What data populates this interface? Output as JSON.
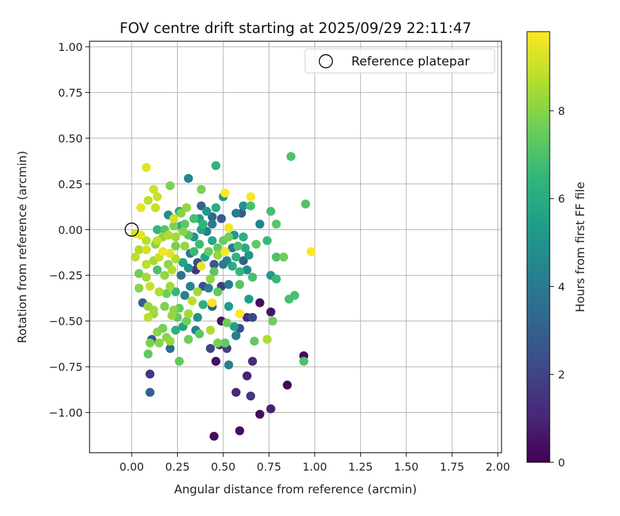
{
  "chart_data": {
    "type": "scatter",
    "title": "FOV centre drift starting at 2025/09/29 22:11:47",
    "xlabel": "Angular distance from reference (arcmin)",
    "ylabel": "Rotation from reference (arcmin)",
    "xlim": [
      -0.23,
      2.02
    ],
    "ylim": [
      -1.22,
      1.03
    ],
    "x_ticks": [
      0.0,
      0.25,
      0.5,
      0.75,
      1.0,
      1.25,
      1.5,
      1.75,
      2.0
    ],
    "x_tick_labels": [
      "0.00",
      "0.25",
      "0.50",
      "0.75",
      "1.00",
      "1.25",
      "1.50",
      "1.75",
      "2.00"
    ],
    "y_ticks": [
      -1.0,
      -0.75,
      -0.5,
      -0.25,
      0.0,
      0.25,
      0.5,
      0.75,
      1.0
    ],
    "y_tick_labels": [
      "−1.00",
      "−0.75",
      "−0.50",
      "−0.25",
      "0.00",
      "0.25",
      "0.50",
      "0.75",
      "1.00"
    ],
    "grid": true,
    "legend": {
      "position": "top-right",
      "entries": [
        "Reference platepar"
      ]
    },
    "reference_point": {
      "x": 0.0,
      "y": 0.0,
      "label": "Reference platepar"
    },
    "colorbar": {
      "label": "Hours from first FF file",
      "range": [
        0,
        9.8
      ],
      "ticks": [
        0,
        2,
        4,
        6,
        8
      ],
      "tick_labels": [
        "0",
        "2",
        "4",
        "6",
        "8"
      ],
      "colormap": [
        "#440154",
        "#482878",
        "#3e4989",
        "#31688e",
        "#26828e",
        "#1f9e89",
        "#35b779",
        "#6ece58",
        "#b5de2b",
        "#fde725"
      ]
    },
    "points": [
      {
        "x": 0.45,
        "y": -1.13,
        "t": 0.3
      },
      {
        "x": 0.59,
        "y": -1.1,
        "t": 0.4
      },
      {
        "x": 0.7,
        "y": -1.01,
        "t": 0.3
      },
      {
        "x": 0.76,
        "y": -0.98,
        "t": 0.9
      },
      {
        "x": 0.57,
        "y": -0.89,
        "t": 1.1
      },
      {
        "x": 0.65,
        "y": -0.91,
        "t": 1.6
      },
      {
        "x": 0.1,
        "y": -0.89,
        "t": 3.0
      },
      {
        "x": 0.1,
        "y": -0.79,
        "t": 1.6
      },
      {
        "x": 0.63,
        "y": -0.8,
        "t": 1.0
      },
      {
        "x": 0.85,
        "y": -0.85,
        "t": 0.2
      },
      {
        "x": 0.46,
        "y": -0.72,
        "t": 0.4
      },
      {
        "x": 0.53,
        "y": -0.74,
        "t": 4.3
      },
      {
        "x": 0.66,
        "y": -0.72,
        "t": 1.3
      },
      {
        "x": 0.26,
        "y": -0.72,
        "t": 7.4
      },
      {
        "x": 0.94,
        "y": -0.69,
        "t": 0.3
      },
      {
        "x": 0.94,
        "y": -0.72,
        "t": 7.0
      },
      {
        "x": 0.09,
        "y": -0.68,
        "t": 7.4
      },
      {
        "x": 0.21,
        "y": -0.65,
        "t": 3.5
      },
      {
        "x": 0.43,
        "y": -0.65,
        "t": 2.0
      },
      {
        "x": 0.52,
        "y": -0.65,
        "t": 1.8
      },
      {
        "x": 0.48,
        "y": -0.63,
        "t": 1.4
      },
      {
        "x": 0.1,
        "y": -0.62,
        "t": 7.8
      },
      {
        "x": 0.15,
        "y": -0.62,
        "t": 8.0
      },
      {
        "x": 0.21,
        "y": -0.61,
        "t": 8.2
      },
      {
        "x": 0.31,
        "y": -0.6,
        "t": 7.6
      },
      {
        "x": 0.47,
        "y": -0.62,
        "t": 7.8
      },
      {
        "x": 0.51,
        "y": -0.62,
        "t": 7.4
      },
      {
        "x": 0.57,
        "y": -0.58,
        "t": 4.0
      },
      {
        "x": 0.67,
        "y": -0.61,
        "t": 7.4
      },
      {
        "x": 0.74,
        "y": -0.6,
        "t": 8.6
      },
      {
        "x": 0.11,
        "y": -0.6,
        "t": 2.8
      },
      {
        "x": 0.19,
        "y": -0.59,
        "t": 8.0
      },
      {
        "x": 0.24,
        "y": -0.55,
        "t": 6.2
      },
      {
        "x": 0.35,
        "y": -0.55,
        "t": 4.2
      },
      {
        "x": 0.37,
        "y": -0.57,
        "t": 7.2
      },
      {
        "x": 0.43,
        "y": -0.55,
        "t": 8.6
      },
      {
        "x": 0.56,
        "y": -0.53,
        "t": 5.5
      },
      {
        "x": 0.59,
        "y": -0.54,
        "t": 2.4
      },
      {
        "x": 0.14,
        "y": -0.56,
        "t": 8.0
      },
      {
        "x": 0.17,
        "y": -0.54,
        "t": 7.7
      },
      {
        "x": 0.28,
        "y": -0.53,
        "t": 5.7
      },
      {
        "x": 0.3,
        "y": -0.5,
        "t": 7.6
      },
      {
        "x": 0.49,
        "y": -0.5,
        "t": 0.5
      },
      {
        "x": 0.52,
        "y": -0.51,
        "t": 7.6
      },
      {
        "x": 0.59,
        "y": -0.46,
        "t": 9.8
      },
      {
        "x": 0.63,
        "y": -0.48,
        "t": 1.2
      },
      {
        "x": 0.66,
        "y": -0.48,
        "t": 2.1
      },
      {
        "x": 0.77,
        "y": -0.5,
        "t": 7.6
      },
      {
        "x": 0.09,
        "y": -0.48,
        "t": 8.8
      },
      {
        "x": 0.12,
        "y": -0.46,
        "t": 8.2
      },
      {
        "x": 0.22,
        "y": -0.47,
        "t": 8.2
      },
      {
        "x": 0.25,
        "y": -0.48,
        "t": 7.4
      },
      {
        "x": 0.31,
        "y": -0.46,
        "t": 8.4
      },
      {
        "x": 0.36,
        "y": -0.48,
        "t": 5.0
      },
      {
        "x": 0.44,
        "y": -0.42,
        "t": 3.0
      },
      {
        "x": 0.53,
        "y": -0.42,
        "t": 5.4
      },
      {
        "x": 0.7,
        "y": -0.4,
        "t": 0.4
      },
      {
        "x": 0.76,
        "y": -0.45,
        "t": 0.5
      },
      {
        "x": 0.06,
        "y": -0.4,
        "t": 3.0
      },
      {
        "x": 0.09,
        "y": -0.42,
        "t": 8.2
      },
      {
        "x": 0.12,
        "y": -0.44,
        "t": 8.4
      },
      {
        "x": 0.18,
        "y": -0.42,
        "t": 7.8
      },
      {
        "x": 0.23,
        "y": -0.44,
        "t": 8.1
      },
      {
        "x": 0.26,
        "y": -0.43,
        "t": 7.4
      },
      {
        "x": 0.33,
        "y": -0.39,
        "t": 8.8
      },
      {
        "x": 0.39,
        "y": -0.41,
        "t": 6.1
      },
      {
        "x": 0.44,
        "y": -0.4,
        "t": 9.8
      },
      {
        "x": 0.64,
        "y": -0.38,
        "t": 5.5
      },
      {
        "x": 0.86,
        "y": -0.38,
        "t": 6.9
      },
      {
        "x": 0.89,
        "y": -0.36,
        "t": 6.9
      },
      {
        "x": 0.04,
        "y": -0.32,
        "t": 8.0
      },
      {
        "x": 0.1,
        "y": -0.31,
        "t": 9.0
      },
      {
        "x": 0.15,
        "y": -0.34,
        "t": 8.6
      },
      {
        "x": 0.19,
        "y": -0.35,
        "t": 7.6
      },
      {
        "x": 0.21,
        "y": -0.31,
        "t": 8.4
      },
      {
        "x": 0.24,
        "y": -0.34,
        "t": 6.5
      },
      {
        "x": 0.29,
        "y": -0.36,
        "t": 4.3
      },
      {
        "x": 0.32,
        "y": -0.31,
        "t": 4.5
      },
      {
        "x": 0.36,
        "y": -0.34,
        "t": 8.4
      },
      {
        "x": 0.39,
        "y": -0.31,
        "t": 2.4
      },
      {
        "x": 0.42,
        "y": -0.32,
        "t": 4.2
      },
      {
        "x": 0.47,
        "y": -0.34,
        "t": 7.4
      },
      {
        "x": 0.49,
        "y": -0.31,
        "t": 1.8
      },
      {
        "x": 0.53,
        "y": -0.3,
        "t": 4.0
      },
      {
        "x": 0.59,
        "y": -0.3,
        "t": 7.2
      },
      {
        "x": 0.04,
        "y": -0.24,
        "t": 7.6
      },
      {
        "x": 0.08,
        "y": -0.26,
        "t": 8.4
      },
      {
        "x": 0.14,
        "y": -0.22,
        "t": 7.0
      },
      {
        "x": 0.18,
        "y": -0.25,
        "t": 8.2
      },
      {
        "x": 0.22,
        "y": -0.22,
        "t": 8.6
      },
      {
        "x": 0.27,
        "y": -0.25,
        "t": 3.6
      },
      {
        "x": 0.31,
        "y": -0.21,
        "t": 5.0
      },
      {
        "x": 0.35,
        "y": -0.22,
        "t": 1.5
      },
      {
        "x": 0.38,
        "y": -0.2,
        "t": 9.5
      },
      {
        "x": 0.43,
        "y": -0.27,
        "t": 8.1
      },
      {
        "x": 0.45,
        "y": -0.23,
        "t": 7.3
      },
      {
        "x": 0.5,
        "y": -0.19,
        "t": 4.0
      },
      {
        "x": 0.55,
        "y": -0.2,
        "t": 6.0
      },
      {
        "x": 0.59,
        "y": -0.23,
        "t": 6.5
      },
      {
        "x": 0.63,
        "y": -0.22,
        "t": 4.8
      },
      {
        "x": 0.66,
        "y": -0.26,
        "t": 6.9
      },
      {
        "x": 0.76,
        "y": -0.25,
        "t": 5.2
      },
      {
        "x": 0.79,
        "y": -0.27,
        "t": 6.6
      },
      {
        "x": 0.02,
        "y": -0.15,
        "t": 8.8
      },
      {
        "x": 0.08,
        "y": -0.19,
        "t": 8.8
      },
      {
        "x": 0.12,
        "y": -0.17,
        "t": 8.4
      },
      {
        "x": 0.15,
        "y": -0.15,
        "t": 9.0
      },
      {
        "x": 0.2,
        "y": -0.19,
        "t": 8.1
      },
      {
        "x": 0.24,
        "y": -0.16,
        "t": 8.6
      },
      {
        "x": 0.28,
        "y": -0.18,
        "t": 5.6
      },
      {
        "x": 0.32,
        "y": -0.13,
        "t": 3.8
      },
      {
        "x": 0.36,
        "y": -0.18,
        "t": 2.5
      },
      {
        "x": 0.4,
        "y": -0.15,
        "t": 5.7
      },
      {
        "x": 0.45,
        "y": -0.19,
        "t": 2.7
      },
      {
        "x": 0.47,
        "y": -0.14,
        "t": 8.2
      },
      {
        "x": 0.52,
        "y": -0.17,
        "t": 4.4
      },
      {
        "x": 0.57,
        "y": -0.15,
        "t": 6.4
      },
      {
        "x": 0.61,
        "y": -0.17,
        "t": 3.0
      },
      {
        "x": 0.64,
        "y": -0.14,
        "t": 5.2
      },
      {
        "x": 0.79,
        "y": -0.15,
        "t": 7.0
      },
      {
        "x": 0.83,
        "y": -0.15,
        "t": 7.6
      },
      {
        "x": 0.04,
        "y": -0.11,
        "t": 8.6
      },
      {
        "x": 0.08,
        "y": -0.11,
        "t": 9.2
      },
      {
        "x": 0.13,
        "y": -0.08,
        "t": 8.0
      },
      {
        "x": 0.17,
        "y": -0.12,
        "t": 9.6
      },
      {
        "x": 0.21,
        "y": -0.13,
        "t": 9.4
      },
      {
        "x": 0.24,
        "y": -0.09,
        "t": 7.8
      },
      {
        "x": 0.29,
        "y": -0.09,
        "t": 8.2
      },
      {
        "x": 0.34,
        "y": -0.12,
        "t": 6.6
      },
      {
        "x": 0.37,
        "y": -0.08,
        "t": 6.7
      },
      {
        "x": 0.42,
        "y": -0.12,
        "t": 7.5
      },
      {
        "x": 0.47,
        "y": -0.1,
        "t": 7.4
      },
      {
        "x": 0.51,
        "y": -0.12,
        "t": 9.7
      },
      {
        "x": 0.55,
        "y": -0.1,
        "t": 4.0
      },
      {
        "x": 0.58,
        "y": -0.09,
        "t": 7.0
      },
      {
        "x": 0.62,
        "y": -0.1,
        "t": 6.0
      },
      {
        "x": 0.68,
        "y": -0.08,
        "t": 7.3
      },
      {
        "x": 0.74,
        "y": -0.06,
        "t": 6.6
      },
      {
        "x": 0.98,
        "y": -0.12,
        "t": 9.8
      },
      {
        "x": 0.02,
        "y": -0.02,
        "t": 9.2
      },
      {
        "x": 0.05,
        "y": -0.03,
        "t": 9.4
      },
      {
        "x": 0.08,
        "y": -0.06,
        "t": 8.8
      },
      {
        "x": 0.14,
        "y": -0.06,
        "t": 8.9
      },
      {
        "x": 0.17,
        "y": -0.04,
        "t": 8.2
      },
      {
        "x": 0.2,
        "y": -0.03,
        "t": 8.6
      },
      {
        "x": 0.24,
        "y": -0.04,
        "t": 8.4
      },
      {
        "x": 0.28,
        "y": -0.01,
        "t": 8.0
      },
      {
        "x": 0.31,
        "y": -0.03,
        "t": 7.2
      },
      {
        "x": 0.34,
        "y": -0.04,
        "t": 5.0
      },
      {
        "x": 0.38,
        "y": 0.0,
        "t": 5.7
      },
      {
        "x": 0.41,
        "y": -0.01,
        "t": 4.3
      },
      {
        "x": 0.44,
        "y": -0.06,
        "t": 5.9
      },
      {
        "x": 0.5,
        "y": -0.06,
        "t": 7.5
      },
      {
        "x": 0.53,
        "y": -0.04,
        "t": 7.7
      },
      {
        "x": 0.56,
        "y": -0.03,
        "t": 5.2
      },
      {
        "x": 0.61,
        "y": -0.04,
        "t": 6.1
      },
      {
        "x": 0.14,
        "y": 0.0,
        "t": 6.5
      },
      {
        "x": 0.18,
        "y": 0.0,
        "t": 7.1
      },
      {
        "x": 0.23,
        "y": 0.02,
        "t": 7.8
      },
      {
        "x": 0.27,
        "y": 0.02,
        "t": 5.8
      },
      {
        "x": 0.29,
        "y": 0.03,
        "t": 7.3
      },
      {
        "x": 0.39,
        "y": 0.03,
        "t": 6.5
      },
      {
        "x": 0.44,
        "y": 0.03,
        "t": 4.0
      },
      {
        "x": 0.53,
        "y": 0.01,
        "t": 9.6
      },
      {
        "x": 0.7,
        "y": 0.03,
        "t": 4.4
      },
      {
        "x": 0.79,
        "y": 0.03,
        "t": 7.2
      },
      {
        "x": 0.2,
        "y": 0.08,
        "t": 4.8
      },
      {
        "x": 0.23,
        "y": 0.06,
        "t": 9.2
      },
      {
        "x": 0.27,
        "y": 0.09,
        "t": 8.0
      },
      {
        "x": 0.34,
        "y": 0.06,
        "t": 6.9
      },
      {
        "x": 0.37,
        "y": 0.06,
        "t": 5.5
      },
      {
        "x": 0.41,
        "y": 0.1,
        "t": 5.2
      },
      {
        "x": 0.44,
        "y": 0.07,
        "t": 3.2
      },
      {
        "x": 0.49,
        "y": 0.06,
        "t": 2.8
      },
      {
        "x": 0.57,
        "y": 0.09,
        "t": 4.1
      },
      {
        "x": 0.6,
        "y": 0.09,
        "t": 2.8
      },
      {
        "x": 0.76,
        "y": 0.1,
        "t": 6.9
      },
      {
        "x": 0.05,
        "y": 0.12,
        "t": 9.4
      },
      {
        "x": 0.13,
        "y": 0.12,
        "t": 9.0
      },
      {
        "x": 0.26,
        "y": 0.1,
        "t": 6.0
      },
      {
        "x": 0.3,
        "y": 0.12,
        "t": 8.2
      },
      {
        "x": 0.38,
        "y": 0.13,
        "t": 3.1
      },
      {
        "x": 0.46,
        "y": 0.12,
        "t": 6.0
      },
      {
        "x": 0.61,
        "y": 0.13,
        "t": 5.0
      },
      {
        "x": 0.65,
        "y": 0.13,
        "t": 6.9
      },
      {
        "x": 0.95,
        "y": 0.14,
        "t": 7.0
      },
      {
        "x": 0.09,
        "y": 0.16,
        "t": 8.8
      },
      {
        "x": 0.14,
        "y": 0.18,
        "t": 9.0
      },
      {
        "x": 0.5,
        "y": 0.18,
        "t": 5.0
      },
      {
        "x": 0.12,
        "y": 0.22,
        "t": 9.1
      },
      {
        "x": 0.38,
        "y": 0.22,
        "t": 7.8
      },
      {
        "x": 0.51,
        "y": 0.2,
        "t": 9.8
      },
      {
        "x": 0.65,
        "y": 0.18,
        "t": 9.7
      },
      {
        "x": 0.21,
        "y": 0.24,
        "t": 7.8
      },
      {
        "x": 0.31,
        "y": 0.28,
        "t": 4.3
      },
      {
        "x": 0.08,
        "y": 0.34,
        "t": 9.4
      },
      {
        "x": 0.46,
        "y": 0.35,
        "t": 6.3
      },
      {
        "x": 0.87,
        "y": 0.4,
        "t": 7.0
      }
    ]
  }
}
